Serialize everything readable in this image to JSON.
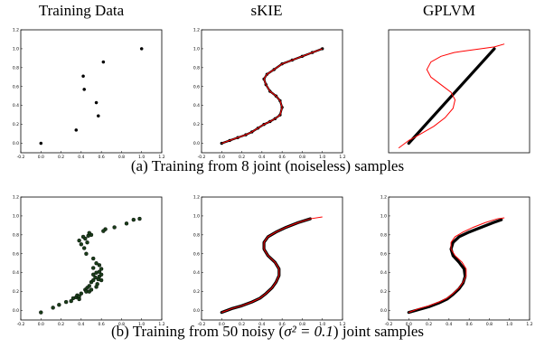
{
  "column_titles": [
    "Training Data",
    "sKIE",
    "GPLVM"
  ],
  "captions": {
    "row_a": "(a) Training from 8 joint (noiseless) samples",
    "row_b_prefix": "(b) Training from 50 noisy (",
    "row_b_math": "σ² = 0.1",
    "row_b_suffix": ") joint samples"
  },
  "colors": {
    "data": "#000000",
    "fit": "#ff0000",
    "noisy_points": "#1a3d1a"
  },
  "chart_data": [
    {
      "id": "a-training",
      "type": "scatter",
      "title": "Training Data",
      "xlim": [
        -0.2,
        1.2
      ],
      "ylim": [
        -0.1,
        1.2
      ],
      "xticks": [
        "-0.2",
        "0.0",
        "0.2",
        "0.4",
        "0.6",
        "0.8",
        "1.0",
        "1.2"
      ],
      "yticks": [
        "0.0",
        "0.2",
        "0.4",
        "0.6",
        "0.8",
        "1.0",
        "1.2"
      ],
      "series": [
        {
          "kind": "points",
          "x": [
            0.0,
            0.35,
            0.42,
            0.43,
            0.55,
            0.57,
            0.62,
            1.0
          ],
          "y": [
            0.0,
            0.14,
            0.71,
            0.57,
            0.43,
            0.29,
            0.86,
            1.0
          ]
        }
      ]
    },
    {
      "id": "a-skie",
      "type": "line",
      "title": "sKIE",
      "xlim": [
        -0.2,
        1.2
      ],
      "ylim": [
        -0.1,
        1.2
      ],
      "xticks": [
        "-0.2",
        "0.0",
        "0.2",
        "0.4",
        "0.6",
        "0.8",
        "1.0",
        "1.2"
      ],
      "yticks": [
        "0.0",
        "0.2",
        "0.4",
        "0.6",
        "0.8",
        "1.0",
        "1.2"
      ],
      "series": [
        {
          "kind": "dots",
          "x": [
            0.0,
            0.08,
            0.16,
            0.24,
            0.3,
            0.36,
            0.42,
            0.48,
            0.53,
            0.58,
            0.6,
            0.58,
            0.54,
            0.48,
            0.44,
            0.42,
            0.45,
            0.52,
            0.6,
            0.7,
            0.8,
            0.9,
            1.0
          ],
          "y": [
            0.0,
            0.03,
            0.06,
            0.09,
            0.12,
            0.16,
            0.2,
            0.23,
            0.26,
            0.3,
            0.38,
            0.45,
            0.5,
            0.55,
            0.62,
            0.68,
            0.73,
            0.78,
            0.84,
            0.88,
            0.92,
            0.96,
            1.0
          ]
        },
        {
          "kind": "line",
          "x": [
            0.0,
            0.08,
            0.16,
            0.24,
            0.3,
            0.36,
            0.42,
            0.48,
            0.53,
            0.58,
            0.6,
            0.58,
            0.54,
            0.48,
            0.44,
            0.42,
            0.45,
            0.52,
            0.6,
            0.7,
            0.8,
            0.9,
            1.0
          ],
          "y": [
            0.0,
            0.03,
            0.06,
            0.09,
            0.12,
            0.16,
            0.2,
            0.23,
            0.26,
            0.3,
            0.38,
            0.45,
            0.5,
            0.55,
            0.62,
            0.68,
            0.73,
            0.78,
            0.84,
            0.88,
            0.92,
            0.96,
            1.0
          ]
        }
      ]
    },
    {
      "id": "a-gplvm",
      "type": "line",
      "title": "GPLVM",
      "xlim": [
        -0.2,
        1.2
      ],
      "ylim": [
        -0.1,
        1.2
      ],
      "xticks": [],
      "yticks": [],
      "series": [
        {
          "kind": "thick",
          "x": [
            0.0,
            0.85
          ],
          "y": [
            0.0,
            1.0
          ]
        },
        {
          "kind": "line",
          "x": [
            -0.1,
            0.0,
            0.12,
            0.25,
            0.36,
            0.44,
            0.46,
            0.42,
            0.32,
            0.22,
            0.18,
            0.22,
            0.32,
            0.45,
            0.58,
            0.72,
            0.85,
            0.95
          ],
          "y": [
            -0.05,
            0.03,
            0.1,
            0.18,
            0.27,
            0.37,
            0.46,
            0.54,
            0.62,
            0.7,
            0.78,
            0.86,
            0.92,
            0.96,
            0.98,
            1.0,
            1.02,
            1.05
          ]
        }
      ]
    },
    {
      "id": "b-training",
      "type": "scatter",
      "title": "Training Data",
      "xlim": [
        -0.2,
        1.2
      ],
      "ylim": [
        -0.1,
        1.2
      ],
      "xticks": [
        "-0.2",
        "0.0",
        "0.2",
        "0.4",
        "0.6",
        "0.8",
        "1.0",
        "1.2"
      ],
      "yticks": [
        "0.0",
        "0.2",
        "0.4",
        "0.6",
        "0.8",
        "1.0",
        "1.2"
      ],
      "series": [
        {
          "kind": "points",
          "x": [
            0.0,
            0.12,
            0.18,
            0.25,
            0.3,
            0.32,
            0.35,
            0.36,
            0.38,
            0.38,
            0.4,
            0.44,
            0.45,
            0.46,
            0.48,
            0.48,
            0.5,
            0.5,
            0.52,
            0.52,
            0.54,
            0.55,
            0.55,
            0.56,
            0.57,
            0.58,
            0.58,
            0.6,
            0.6,
            0.6,
            0.52,
            0.55,
            0.58,
            0.52,
            0.45,
            0.43,
            0.4,
            0.38,
            0.44,
            0.47,
            0.5,
            0.48,
            0.42,
            0.46,
            0.64,
            0.73,
            0.85,
            0.92,
            0.98,
            0.62
          ],
          "y": [
            -0.02,
            0.03,
            0.06,
            0.09,
            0.1,
            0.13,
            0.14,
            0.16,
            0.12,
            0.15,
            0.18,
            0.22,
            0.2,
            0.24,
            0.26,
            0.2,
            0.22,
            0.3,
            0.32,
            0.38,
            0.35,
            0.4,
            0.25,
            0.28,
            0.33,
            0.36,
            0.41,
            0.38,
            0.44,
            0.32,
            0.45,
            0.5,
            0.48,
            0.55,
            0.6,
            0.66,
            0.7,
            0.74,
            0.76,
            0.79,
            0.8,
            0.82,
            0.78,
            0.72,
            0.86,
            0.88,
            0.92,
            0.96,
            0.97,
            0.84
          ]
        }
      ]
    },
    {
      "id": "b-skie",
      "type": "line",
      "title": "sKIE",
      "xlim": [
        -0.2,
        1.2
      ],
      "ylim": [
        -0.1,
        1.2
      ],
      "xticks": [
        "-0.2",
        "0.0",
        "0.2",
        "0.4",
        "0.6",
        "0.8",
        "1.0",
        "1.2"
      ],
      "yticks": [
        "0.0",
        "0.2",
        "0.4",
        "0.6",
        "0.8",
        "1.0",
        "1.2"
      ],
      "series": [
        {
          "kind": "thick",
          "x": [
            0.0,
            0.1,
            0.2,
            0.3,
            0.38,
            0.44,
            0.5,
            0.54,
            0.57,
            0.57,
            0.53,
            0.46,
            0.42,
            0.42,
            0.46,
            0.54,
            0.64,
            0.76,
            0.88
          ],
          "y": [
            -0.02,
            0.02,
            0.05,
            0.09,
            0.13,
            0.18,
            0.24,
            0.3,
            0.37,
            0.44,
            0.51,
            0.58,
            0.65,
            0.72,
            0.78,
            0.83,
            0.88,
            0.93,
            0.97
          ]
        },
        {
          "kind": "line",
          "x": [
            0.0,
            0.1,
            0.2,
            0.3,
            0.38,
            0.44,
            0.5,
            0.54,
            0.57,
            0.57,
            0.53,
            0.46,
            0.42,
            0.42,
            0.46,
            0.54,
            0.64,
            0.76,
            0.88,
            1.0
          ],
          "y": [
            -0.02,
            0.02,
            0.05,
            0.09,
            0.13,
            0.18,
            0.24,
            0.3,
            0.37,
            0.44,
            0.51,
            0.58,
            0.65,
            0.72,
            0.78,
            0.83,
            0.88,
            0.93,
            0.97,
            0.99
          ]
        }
      ]
    },
    {
      "id": "b-gplvm",
      "type": "line",
      "title": "GPLVM",
      "xlim": [
        -0.2,
        1.2
      ],
      "ylim": [
        -0.1,
        1.2
      ],
      "xticks": [
        "-0.2",
        "0.0",
        "0.2",
        "0.4",
        "0.6",
        "0.8",
        "1.0",
        "1.2"
      ],
      "yticks": [
        "0.0",
        "0.2",
        "0.4",
        "0.6",
        "0.8",
        "1.0",
        "1.2"
      ],
      "series": [
        {
          "kind": "thick",
          "x": [
            0.0,
            0.1,
            0.2,
            0.3,
            0.38,
            0.44,
            0.5,
            0.54,
            0.56,
            0.55,
            0.5,
            0.44,
            0.42,
            0.44,
            0.5,
            0.6,
            0.72,
            0.84,
            0.92
          ],
          "y": [
            -0.02,
            0.01,
            0.04,
            0.08,
            0.12,
            0.17,
            0.23,
            0.29,
            0.36,
            0.44,
            0.51,
            0.58,
            0.65,
            0.72,
            0.78,
            0.83,
            0.88,
            0.93,
            0.96
          ]
        },
        {
          "kind": "line",
          "x": [
            0.0,
            0.1,
            0.2,
            0.3,
            0.38,
            0.44,
            0.5,
            0.54,
            0.57,
            0.57,
            0.53,
            0.46,
            0.42,
            0.42,
            0.46,
            0.54,
            0.64,
            0.76,
            0.88,
            0.95
          ],
          "y": [
            -0.02,
            0.02,
            0.05,
            0.09,
            0.13,
            0.18,
            0.24,
            0.3,
            0.37,
            0.44,
            0.51,
            0.58,
            0.65,
            0.72,
            0.78,
            0.83,
            0.88,
            0.93,
            0.97,
            0.98
          ]
        }
      ]
    }
  ]
}
